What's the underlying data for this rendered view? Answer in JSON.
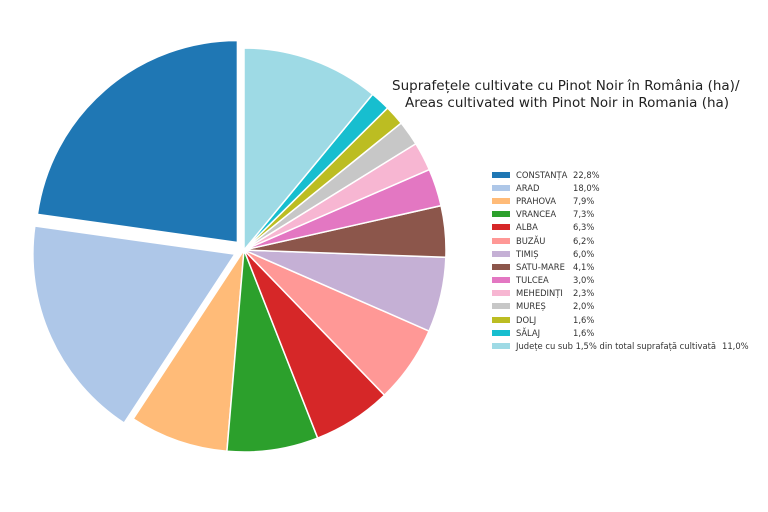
{
  "chart_data": {
    "type": "pie",
    "title_line1": "Suprafețele cultivate cu Pinot Noir în România (ha)/",
    "title_line2": "Areas cultivated with Pinot Noir in Romania (ha)",
    "slices": [
      {
        "label": "CONSTANȚA",
        "value": 22.8,
        "display": "22,8%",
        "color": "#1f77b4",
        "exploded": true
      },
      {
        "label": "ARAD",
        "value": 18.0,
        "display": "18,0%",
        "color": "#aec7e8",
        "exploded": true
      },
      {
        "label": "PRAHOVA",
        "value": 7.9,
        "display": "7,9%",
        "color": "#ffbb78",
        "exploded": false
      },
      {
        "label": "VRANCEA",
        "value": 7.3,
        "display": "7,3%",
        "color": "#2ca02c",
        "exploded": false
      },
      {
        "label": "ALBA",
        "value": 6.3,
        "display": "6,3%",
        "color": "#d62728",
        "exploded": false
      },
      {
        "label": "BUZĂU",
        "value": 6.2,
        "display": "6,2%",
        "color": "#ff9896",
        "exploded": false
      },
      {
        "label": "TIMIȘ",
        "value": 6.0,
        "display": "6,0%",
        "color": "#c5b0d5",
        "exploded": false
      },
      {
        "label": "SATU-MARE",
        "value": 4.1,
        "display": "4,1%",
        "color": "#8c564b",
        "exploded": false
      },
      {
        "label": "TULCEA",
        "value": 3.0,
        "display": "3,0%",
        "color": "#e377c2",
        "exploded": false
      },
      {
        "label": "MEHEDINȚI",
        "value": 2.3,
        "display": "2,3%",
        "color": "#f7b6d2",
        "exploded": false
      },
      {
        "label": "MUREȘ",
        "value": 2.0,
        "display": "2,0%",
        "color": "#c7c7c7",
        "exploded": false
      },
      {
        "label": "DOLJ",
        "value": 1.6,
        "display": "1,6%",
        "color": "#bcbd22",
        "exploded": false
      },
      {
        "label": "SĂLAJ",
        "value": 1.6,
        "display": "1,6%",
        "color": "#17becf",
        "exploded": false
      },
      {
        "label": "Județe cu sub 1,5% din total suprafață cultivată",
        "value": 11.0,
        "display": "11,0%",
        "color": "#9edae5",
        "exploded": false
      }
    ],
    "legend_position": "right"
  }
}
